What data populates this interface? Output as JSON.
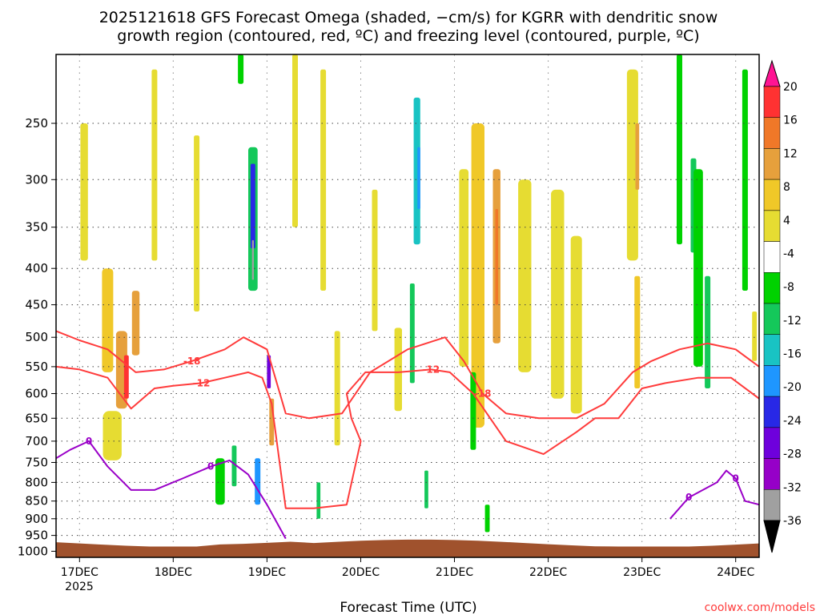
{
  "chart_data": {
    "type": "heatmap",
    "title_line1": "2025121618 GFS Forecast Omega (shaded, −cm/s) for KGRR with dendritic snow",
    "title_line2": "growth region (contoured, red, ºC) and freezing level (contoured, purple, ºC)",
    "xlabel": "Forecast Time (UTC)",
    "x_year_label": "2025",
    "x_ticks": [
      "17DEC",
      "18DEC",
      "19DEC",
      "20DEC",
      "21DEC",
      "22DEC",
      "23DEC",
      "24DEC"
    ],
    "x_range_days": [
      16.75,
      24.25
    ],
    "y_ticks": [
      250,
      300,
      350,
      400,
      450,
      500,
      550,
      600,
      650,
      700,
      750,
      800,
      850,
      900,
      950,
      1000
    ],
    "y_labels": [
      "250",
      "300",
      "350",
      "400",
      "450",
      "500",
      "550",
      "600",
      "650",
      "700",
      "750",
      "800",
      "850",
      "900",
      "950",
      "1000"
    ],
    "y_range_hpa": [
      200,
      1020
    ],
    "grid": true,
    "colorbar": {
      "levels": [
        -36,
        -32,
        -28,
        -24,
        -20,
        -16,
        -12,
        -8,
        -4,
        4,
        8,
        12,
        16,
        20
      ],
      "labels": [
        "-36",
        "-32",
        "-28",
        "-24",
        "-20",
        "-16",
        "-12",
        "-8",
        "-4",
        "4",
        "8",
        "12",
        "16",
        "20"
      ],
      "colors": [
        "#000000",
        "#a0a0a0",
        "#9600c8",
        "#6e00dc",
        "#2828e6",
        "#1e96ff",
        "#19c3c3",
        "#14c85a",
        "#00d200",
        "#ffffff",
        "#e6dc32",
        "#f0c828",
        "#e6a03c",
        "#f07828",
        "#ff3232",
        "#ff1493"
      ]
    },
    "omega_cells": [
      {
        "t": 17.05,
        "p": 320,
        "w": 0.08,
        "h": 140,
        "v": 6
      },
      {
        "t": 17.3,
        "p": 480,
        "w": 0.12,
        "h": 160,
        "v": 8
      },
      {
        "t": 17.45,
        "p": 560,
        "w": 0.12,
        "h": 140,
        "v": 12
      },
      {
        "t": 17.5,
        "p": 570,
        "w": 0.05,
        "h": 80,
        "v": 20
      },
      {
        "t": 17.6,
        "p": 480,
        "w": 0.08,
        "h": 100,
        "v": 14
      },
      {
        "t": 17.35,
        "p": 690,
        "w": 0.2,
        "h": 110,
        "v": 7
      },
      {
        "t": 17.8,
        "p": 300,
        "w": 0.06,
        "h": 180,
        "v": 5
      },
      {
        "t": 18.25,
        "p": 360,
        "w": 0.06,
        "h": 200,
        "v": 6
      },
      {
        "t": 18.5,
        "p": 800,
        "w": 0.1,
        "h": 120,
        "v": -8
      },
      {
        "t": 18.65,
        "p": 760,
        "w": 0.05,
        "h": 100,
        "v": -12
      },
      {
        "t": 18.85,
        "p": 350,
        "w": 0.1,
        "h": 160,
        "v": -12
      },
      {
        "t": 18.85,
        "p": 330,
        "w": 0.05,
        "h": 90,
        "v": -22
      },
      {
        "t": 18.85,
        "p": 390,
        "w": 0.02,
        "h": 50,
        "v": -36
      },
      {
        "t": 18.9,
        "p": 800,
        "w": 0.06,
        "h": 120,
        "v": -20
      },
      {
        "t": 18.72,
        "p": 160,
        "w": 0.06,
        "h": 120,
        "v": -8
      },
      {
        "t": 19.02,
        "p": 560,
        "w": 0.04,
        "h": 60,
        "v": -26
      },
      {
        "t": 19.05,
        "p": 660,
        "w": 0.05,
        "h": 100,
        "v": 14
      },
      {
        "t": 19.3,
        "p": 250,
        "w": 0.06,
        "h": 200,
        "v": 6
      },
      {
        "t": 19.6,
        "p": 320,
        "w": 0.06,
        "h": 220,
        "v": 6
      },
      {
        "t": 19.75,
        "p": 600,
        "w": 0.06,
        "h": 220,
        "v": 5
      },
      {
        "t": 20.15,
        "p": 400,
        "w": 0.06,
        "h": 180,
        "v": 5
      },
      {
        "t": 20.4,
        "p": 560,
        "w": 0.08,
        "h": 150,
        "v": 6
      },
      {
        "t": 20.6,
        "p": 300,
        "w": 0.07,
        "h": 140,
        "v": -14
      },
      {
        "t": 20.62,
        "p": 300,
        "w": 0.03,
        "h": 60,
        "v": -20
      },
      {
        "t": 20.55,
        "p": 500,
        "w": 0.05,
        "h": 160,
        "v": -10
      },
      {
        "t": 21.1,
        "p": 420,
        "w": 0.1,
        "h": 260,
        "v": 6
      },
      {
        "t": 21.25,
        "p": 460,
        "w": 0.14,
        "h": 420,
        "v": 9
      },
      {
        "t": 21.45,
        "p": 400,
        "w": 0.08,
        "h": 220,
        "v": 14
      },
      {
        "t": 21.45,
        "p": 390,
        "w": 0.03,
        "h": 120,
        "v": 17
      },
      {
        "t": 21.75,
        "p": 430,
        "w": 0.14,
        "h": 260,
        "v": 6
      },
      {
        "t": 22.1,
        "p": 460,
        "w": 0.14,
        "h": 300,
        "v": 5
      },
      {
        "t": 22.3,
        "p": 500,
        "w": 0.12,
        "h": 280,
        "v": 5
      },
      {
        "t": 22.9,
        "p": 300,
        "w": 0.12,
        "h": 180,
        "v": 7
      },
      {
        "t": 22.95,
        "p": 280,
        "w": 0.04,
        "h": 60,
        "v": 14
      },
      {
        "t": 22.95,
        "p": 500,
        "w": 0.06,
        "h": 180,
        "v": 8
      },
      {
        "t": 23.4,
        "p": 280,
        "w": 0.06,
        "h": 180,
        "v": -8
      },
      {
        "t": 23.55,
        "p": 330,
        "w": 0.06,
        "h": 100,
        "v": -12
      },
      {
        "t": 23.6,
        "p": 420,
        "w": 0.1,
        "h": 260,
        "v": -8
      },
      {
        "t": 23.7,
        "p": 500,
        "w": 0.06,
        "h": 180,
        "v": -12
      },
      {
        "t": 24.1,
        "p": 320,
        "w": 0.06,
        "h": 220,
        "v": -8
      },
      {
        "t": 24.2,
        "p": 500,
        "w": 0.05,
        "h": 80,
        "v": 5
      },
      {
        "t": 19.55,
        "p": 850,
        "w": 0.04,
        "h": 100,
        "v": -10
      },
      {
        "t": 20.7,
        "p": 820,
        "w": 0.04,
        "h": 100,
        "v": -10
      },
      {
        "t": 21.35,
        "p": 900,
        "w": 0.05,
        "h": 80,
        "v": -8
      },
      {
        "t": 21.2,
        "p": 640,
        "w": 0.06,
        "h": 160,
        "v": -8
      }
    ],
    "contours": {
      "dgz_red_-12": {
        "color": "#ff3b3b",
        "label": "-12",
        "t": [
          16.75,
          17.0,
          17.3,
          17.55,
          17.8,
          18.0,
          18.3,
          18.55,
          18.8,
          18.95,
          19.05,
          19.2,
          19.5,
          19.85,
          20.0,
          19.9,
          19.85,
          20.05,
          20.4,
          20.75,
          20.95,
          21.2,
          21.55,
          21.95,
          22.3,
          22.5,
          22.75,
          23.0,
          23.25,
          23.6,
          23.95,
          24.25
        ],
        "p": [
          550,
          555,
          570,
          630,
          590,
          585,
          580,
          570,
          560,
          570,
          620,
          870,
          870,
          860,
          700,
          650,
          600,
          560,
          560,
          555,
          560,
          600,
          700,
          730,
          680,
          650,
          650,
          590,
          580,
          570,
          570,
          610
        ]
      },
      "dgz_red_-18": {
        "color": "#ff3b3b",
        "label": "-18",
        "t": [
          16.75,
          17.0,
          17.3,
          17.6,
          17.9,
          18.2,
          18.55,
          18.75,
          19.0,
          19.2,
          19.45,
          19.8,
          20.1,
          20.5,
          20.9,
          21.1,
          21.3,
          21.55,
          21.9,
          22.3,
          22.6,
          22.9,
          23.1,
          23.4,
          23.7,
          24.0,
          24.25
        ],
        "p": [
          490,
          505,
          520,
          560,
          555,
          540,
          520,
          500,
          520,
          640,
          650,
          640,
          560,
          520,
          500,
          540,
          600,
          640,
          650,
          650,
          620,
          560,
          540,
          520,
          510,
          520,
          550
        ]
      },
      "freezing_purple_0": {
        "color": "#9a00c8",
        "label": "0",
        "t": [
          16.75,
          16.9,
          17.1,
          17.3,
          17.55,
          17.8,
          18.1,
          18.4,
          18.6,
          18.8,
          19.0,
          19.2
        ],
        "p": [
          740,
          720,
          700,
          760,
          820,
          820,
          790,
          760,
          745,
          780,
          860,
          960
        ]
      },
      "freezing_purple_0_east": {
        "color": "#9a00c8",
        "label": "0",
        "t": [
          23.3,
          23.5,
          23.8,
          23.9,
          24.0,
          24.1,
          24.25
        ],
        "p": [
          900,
          840,
          800,
          770,
          790,
          850,
          860
        ]
      }
    },
    "ground_label": "terrain",
    "credit": "coolwx.com/models"
  }
}
